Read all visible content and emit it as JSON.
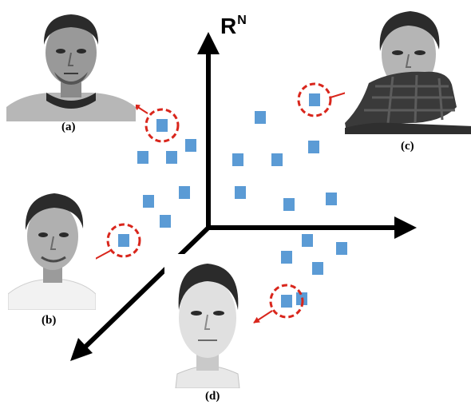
{
  "axis_label": {
    "main": "R",
    "superscript": "N"
  },
  "captions": {
    "a": "(a)",
    "b": "(b)",
    "c": "(c)",
    "d": "(d)"
  },
  "colors": {
    "point": "#5b9bd5",
    "highlight": "#d9261c",
    "axis": "#000000"
  },
  "faces": {
    "a": {
      "description_icon": "face-neutral-icon"
    },
    "b": {
      "description_icon": "face-smile-icon"
    },
    "c": {
      "description_icon": "face-scarf-icon"
    },
    "d": {
      "description_icon": "face-frontal-icon"
    }
  }
}
